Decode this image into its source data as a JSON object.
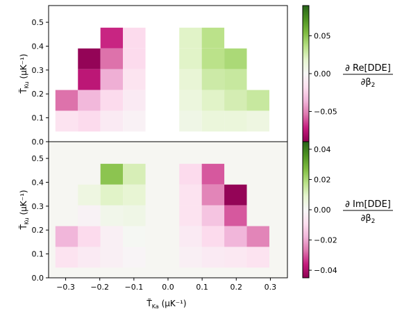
{
  "chart_data": [
    {
      "type": "heatmap",
      "panel": "top",
      "ylabel_main": "T̃",
      "ylabel_sub": "Ku",
      "ylabel_unit": "(μK⁻¹)",
      "xlim": [
        -0.35,
        0.35
      ],
      "ylim": [
        0.0,
        0.57
      ],
      "yticks": [
        "0.0",
        "0.1",
        "0.2",
        "0.3",
        "0.4",
        "0.5"
      ],
      "ytick_values": [
        0.0,
        0.1,
        0.2,
        0.3,
        0.4,
        0.5
      ],
      "background": "#ffffff",
      "cell_width": 0.066,
      "cell_height": 0.0868,
      "colorbar": {
        "vmin": -0.09,
        "vmax": 0.09,
        "ticks": [
          "0.05",
          "0.00",
          "−0.05"
        ],
        "tick_values": [
          0.05,
          0.0,
          -0.05
        ],
        "label_num": "∂ Re[DDE]",
        "label_den": "∂β",
        "label_den_sub": "2"
      },
      "cells": [
        {
          "x": -0.297,
          "y": 0.086,
          "v": -0.016
        },
        {
          "x": -0.231,
          "y": 0.086,
          "v": -0.02
        },
        {
          "x": -0.165,
          "y": 0.086,
          "v": -0.01
        },
        {
          "x": -0.099,
          "y": 0.086,
          "v": -0.005
        },
        {
          "x": -0.297,
          "y": 0.173,
          "v": -0.055
        },
        {
          "x": -0.231,
          "y": 0.173,
          "v": -0.035
        },
        {
          "x": -0.165,
          "y": 0.173,
          "v": -0.02
        },
        {
          "x": -0.099,
          "y": 0.173,
          "v": -0.01
        },
        {
          "x": -0.231,
          "y": 0.26,
          "v": -0.075
        },
        {
          "x": -0.165,
          "y": 0.26,
          "v": -0.038
        },
        {
          "x": -0.099,
          "y": 0.26,
          "v": -0.015
        },
        {
          "x": -0.231,
          "y": 0.347,
          "v": -0.088
        },
        {
          "x": -0.165,
          "y": 0.347,
          "v": -0.055
        },
        {
          "x": -0.099,
          "y": 0.347,
          "v": -0.02
        },
        {
          "x": -0.165,
          "y": 0.434,
          "v": -0.07
        },
        {
          "x": -0.099,
          "y": 0.434,
          "v": -0.02
        },
        {
          "x": 0.066,
          "y": 0.086,
          "v": 0.008
        },
        {
          "x": 0.132,
          "y": 0.086,
          "v": 0.013
        },
        {
          "x": 0.198,
          "y": 0.086,
          "v": 0.013
        },
        {
          "x": 0.264,
          "y": 0.086,
          "v": 0.01
        },
        {
          "x": 0.066,
          "y": 0.173,
          "v": 0.012
        },
        {
          "x": 0.132,
          "y": 0.173,
          "v": 0.02
        },
        {
          "x": 0.198,
          "y": 0.173,
          "v": 0.025
        },
        {
          "x": 0.264,
          "y": 0.173,
          "v": 0.03
        },
        {
          "x": 0.066,
          "y": 0.26,
          "v": 0.015
        },
        {
          "x": 0.132,
          "y": 0.26,
          "v": 0.028
        },
        {
          "x": 0.198,
          "y": 0.26,
          "v": 0.03
        },
        {
          "x": 0.066,
          "y": 0.347,
          "v": 0.02
        },
        {
          "x": 0.132,
          "y": 0.347,
          "v": 0.035
        },
        {
          "x": 0.198,
          "y": 0.347,
          "v": 0.04
        },
        {
          "x": 0.066,
          "y": 0.434,
          "v": 0.02
        },
        {
          "x": 0.132,
          "y": 0.434,
          "v": 0.035
        }
      ]
    },
    {
      "type": "heatmap",
      "panel": "bottom",
      "xlabel_main": "T̃",
      "xlabel_sub": "Ka",
      "xlabel_unit": "(μK⁻¹)",
      "ylabel_main": "T̃",
      "ylabel_sub": "Ku",
      "ylabel_unit": "(μK⁻¹)",
      "xlim": [
        -0.35,
        0.35
      ],
      "ylim": [
        0.0,
        0.57
      ],
      "xticks": [
        "−0.3",
        "−0.2",
        "−0.1",
        "0.0",
        "0.1",
        "0.2",
        "0.3"
      ],
      "xtick_values": [
        -0.3,
        -0.2,
        -0.1,
        0.0,
        0.1,
        0.2,
        0.3
      ],
      "yticks": [
        "0.0",
        "0.1",
        "0.2",
        "0.3",
        "0.4",
        "0.5"
      ],
      "ytick_values": [
        0.0,
        0.1,
        0.2,
        0.3,
        0.4,
        0.5
      ],
      "background": "#f6f6f2",
      "cell_width": 0.066,
      "cell_height": 0.0868,
      "colorbar": {
        "vmin": -0.045,
        "vmax": 0.045,
        "ticks": [
          "0.04",
          "0.02",
          "0.00",
          "−0.02",
          "−0.04"
        ],
        "tick_values": [
          0.04,
          0.02,
          0.0,
          -0.02,
          -0.04
        ],
        "label_num": "∂ Im[DDE]",
        "label_den": "∂β",
        "label_den_sub": "2"
      },
      "cells": [
        {
          "x": -0.297,
          "y": 0.086,
          "v": -0.008
        },
        {
          "x": -0.231,
          "y": 0.086,
          "v": -0.005
        },
        {
          "x": -0.165,
          "y": 0.086,
          "v": -0.003
        },
        {
          "x": -0.099,
          "y": 0.086,
          "v": -0.001
        },
        {
          "x": -0.297,
          "y": 0.173,
          "v": -0.018
        },
        {
          "x": -0.231,
          "y": 0.173,
          "v": -0.01
        },
        {
          "x": -0.165,
          "y": 0.173,
          "v": -0.003
        },
        {
          "x": -0.099,
          "y": 0.173,
          "v": 0.001
        },
        {
          "x": -0.231,
          "y": 0.26,
          "v": -0.002
        },
        {
          "x": -0.165,
          "y": 0.26,
          "v": 0.003
        },
        {
          "x": -0.099,
          "y": 0.26,
          "v": 0.004
        },
        {
          "x": -0.231,
          "y": 0.347,
          "v": 0.005
        },
        {
          "x": -0.165,
          "y": 0.347,
          "v": 0.01
        },
        {
          "x": -0.099,
          "y": 0.347,
          "v": 0.008
        },
        {
          "x": -0.165,
          "y": 0.434,
          "v": 0.025
        },
        {
          "x": -0.099,
          "y": 0.434,
          "v": 0.012
        },
        {
          "x": 0.066,
          "y": 0.086,
          "v": -0.003
        },
        {
          "x": 0.132,
          "y": 0.086,
          "v": -0.005
        },
        {
          "x": 0.198,
          "y": 0.086,
          "v": -0.006
        },
        {
          "x": 0.264,
          "y": 0.086,
          "v": -0.008
        },
        {
          "x": 0.066,
          "y": 0.173,
          "v": -0.005
        },
        {
          "x": 0.132,
          "y": 0.173,
          "v": -0.01
        },
        {
          "x": 0.198,
          "y": 0.173,
          "v": -0.018
        },
        {
          "x": 0.264,
          "y": 0.173,
          "v": -0.025
        },
        {
          "x": 0.066,
          "y": 0.26,
          "v": -0.008
        },
        {
          "x": 0.132,
          "y": 0.26,
          "v": -0.015
        },
        {
          "x": 0.198,
          "y": 0.26,
          "v": -0.03
        },
        {
          "x": 0.066,
          "y": 0.347,
          "v": -0.008
        },
        {
          "x": 0.132,
          "y": 0.347,
          "v": -0.025
        },
        {
          "x": 0.198,
          "y": 0.347,
          "v": -0.044
        },
        {
          "x": 0.066,
          "y": 0.434,
          "v": -0.01
        },
        {
          "x": 0.132,
          "y": 0.434,
          "v": -0.03
        }
      ]
    }
  ]
}
